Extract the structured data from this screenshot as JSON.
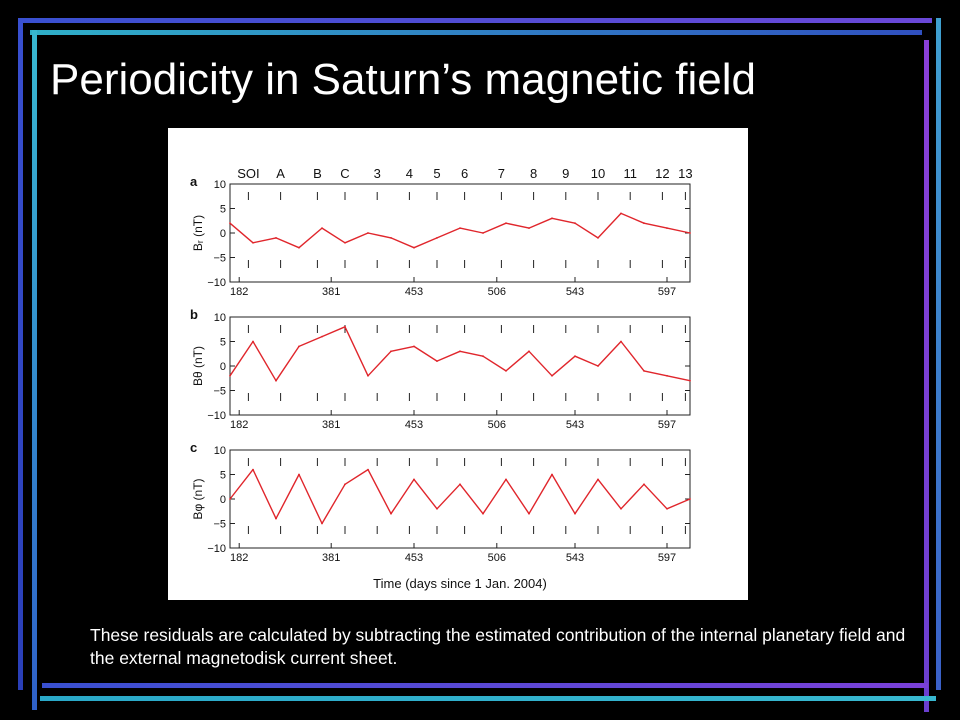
{
  "slide": {
    "title": "Periodicity in Saturn’s magnetic field",
    "caption": "These residuals are calculated by subtracting the estimated contribution of the internal planetary field and the external magnetodisk current sheet.",
    "colors": {
      "background": "#000000",
      "frame_gradient": [
        "#3a4fd0",
        "#8a3fd8"
      ],
      "trace": "#e0262c"
    }
  },
  "chart_data": {
    "type": "line",
    "xlabel": "Time (days since 1 Jan. 2004)",
    "x_ticks": [
      "182",
      "381",
      "453",
      "506",
      "543",
      "597"
    ],
    "orbit_labels": [
      "SOI",
      "A",
      "B",
      "C",
      "3",
      "4",
      "5",
      "6",
      "7",
      "8",
      "9",
      "10",
      "11",
      "12",
      "13"
    ],
    "ylim": [
      -10,
      10
    ],
    "y_ticks": [
      10,
      5,
      0,
      -5,
      -10
    ],
    "grid": false,
    "panels": [
      {
        "letter": "a",
        "ylabel": "Bᵣ (nT)",
        "series": {
          "name": "",
          "x_fraction": [
            0,
            0.05,
            0.1,
            0.15,
            0.2,
            0.25,
            0.3,
            0.35,
            0.4,
            0.45,
            0.5,
            0.55,
            0.6,
            0.65,
            0.7,
            0.75,
            0.8,
            0.85,
            0.9,
            0.95,
            1
          ],
          "values": [
            2,
            -2,
            -1,
            -3,
            1,
            -2,
            0,
            -1,
            -3,
            -1,
            1,
            0,
            2,
            1,
            3,
            2,
            -1,
            4,
            2,
            1,
            0
          ]
        }
      },
      {
        "letter": "b",
        "ylabel": "Bθ (nT)",
        "series": {
          "name": "",
          "x_fraction": [
            0,
            0.05,
            0.1,
            0.15,
            0.2,
            0.25,
            0.3,
            0.35,
            0.4,
            0.45,
            0.5,
            0.55,
            0.6,
            0.65,
            0.7,
            0.75,
            0.8,
            0.85,
            0.9,
            0.95,
            1
          ],
          "values": [
            -2,
            5,
            -3,
            4,
            6,
            8,
            -2,
            3,
            4,
            1,
            3,
            2,
            -1,
            3,
            -2,
            2,
            0,
            5,
            -1,
            -2,
            -3
          ]
        }
      },
      {
        "letter": "c",
        "ylabel": "Bφ (nT)",
        "series": {
          "name": "",
          "x_fraction": [
            0,
            0.05,
            0.1,
            0.15,
            0.2,
            0.25,
            0.3,
            0.35,
            0.4,
            0.45,
            0.5,
            0.55,
            0.6,
            0.65,
            0.7,
            0.75,
            0.8,
            0.85,
            0.9,
            0.95,
            1
          ],
          "values": [
            0,
            6,
            -4,
            5,
            -5,
            3,
            6,
            -3,
            4,
            -2,
            3,
            -3,
            4,
            -3,
            5,
            -3,
            4,
            -2,
            3,
            -2,
            0
          ]
        }
      }
    ]
  }
}
